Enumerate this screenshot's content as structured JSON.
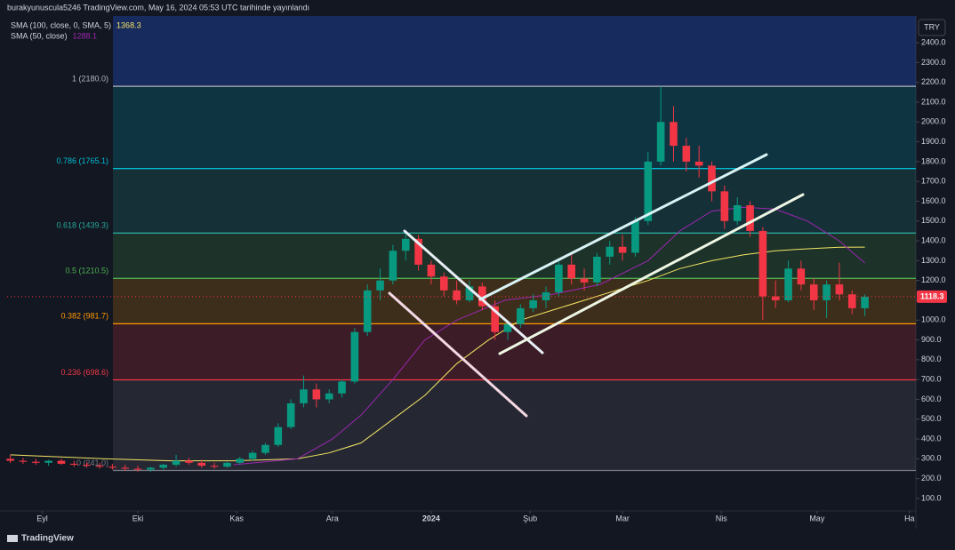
{
  "header": {
    "text": "burakyunuscula5246 TradingView.com, May 16, 2024 05:53 UTC tarihinde yayınlandı",
    "footer": "TradingView"
  },
  "chart_data": {
    "type": "candlestick",
    "currency": "TRY",
    "up_color": "#089981",
    "down_color": "#f23645",
    "xlim": [
      -11,
      274
    ],
    "ylim": [
      37,
      2535
    ],
    "xticks": [
      {
        "value": 0,
        "label": "Eyl"
      },
      {
        "value": 30,
        "label": "Eki"
      },
      {
        "value": 61,
        "label": "Kas"
      },
      {
        "value": 91,
        "label": "Ara"
      },
      {
        "value": 122,
        "label": "2024"
      },
      {
        "value": 153,
        "label": "Şub"
      },
      {
        "value": 182,
        "label": "Mar"
      },
      {
        "value": 213,
        "label": "Nis"
      },
      {
        "value": 243,
        "label": "May"
      },
      {
        "value": 272,
        "label": "Ha"
      }
    ],
    "yticks": [
      {
        "value": 100,
        "label": "100.0"
      },
      {
        "value": 200,
        "label": "200.0"
      },
      {
        "value": 300,
        "label": "300.0"
      },
      {
        "value": 400,
        "label": "400.0"
      },
      {
        "value": 500,
        "label": "500.0"
      },
      {
        "value": 600,
        "label": "600.0"
      },
      {
        "value": 700,
        "label": "700.0"
      },
      {
        "value": 800,
        "label": "800.0"
      },
      {
        "value": 900,
        "label": "900.0"
      },
      {
        "value": 1000,
        "label": "1000.0"
      },
      {
        "value": 1100,
        "label": "1100.0"
      },
      {
        "value": 1200,
        "label": "1200.0"
      },
      {
        "value": 1300,
        "label": "1300.0"
      },
      {
        "value": 1400,
        "label": "1400.0"
      },
      {
        "value": 1500,
        "label": "1500.0"
      },
      {
        "value": 1600,
        "label": "1600.0"
      },
      {
        "value": 1700,
        "label": "1700.0"
      },
      {
        "value": 1800,
        "label": "1800.0"
      },
      {
        "value": 1900,
        "label": "1900.0"
      },
      {
        "value": 2000,
        "label": "2000.0"
      },
      {
        "value": 2100,
        "label": "2100.0"
      },
      {
        "value": 2200,
        "label": "2200.0"
      },
      {
        "value": 2300,
        "label": "2300.0"
      },
      {
        "value": 2400,
        "label": "2400.0"
      }
    ],
    "x": [
      -10,
      -6,
      -2,
      2,
      6,
      10,
      14,
      18,
      22,
      26,
      30,
      34,
      38,
      42,
      46,
      50,
      54,
      58,
      62,
      66,
      70,
      74,
      78,
      82,
      86,
      90,
      94,
      98,
      102,
      106,
      110,
      114,
      118,
      122,
      126,
      130,
      134,
      138,
      142,
      146,
      150,
      154,
      158,
      162,
      166,
      170,
      174,
      178,
      182,
      186,
      190,
      194,
      198,
      202,
      206,
      210,
      214,
      218,
      222,
      226,
      230,
      234,
      238,
      242,
      246,
      250,
      254,
      258
    ],
    "open": [
      300,
      290,
      285,
      280,
      290,
      275,
      270,
      265,
      260,
      255,
      250,
      245,
      255,
      270,
      290,
      280,
      265,
      260,
      280,
      300,
      330,
      370,
      460,
      580,
      650,
      600,
      630,
      690,
      940,
      1150,
      1200,
      1350,
      1410,
      1280,
      1220,
      1150,
      1100,
      1170,
      1070,
      940,
      980,
      1060,
      1100,
      1140,
      1280,
      1210,
      1190,
      1320,
      1370,
      1340,
      1500,
      1800,
      2000,
      1880,
      1800,
      1780,
      1650,
      1500,
      1580,
      1450,
      1120,
      1100,
      1260,
      1180,
      1100,
      1180,
      1130,
      1060
    ],
    "high": [
      320,
      305,
      300,
      295,
      300,
      290,
      285,
      280,
      275,
      270,
      265,
      260,
      275,
      320,
      305,
      295,
      280,
      285,
      310,
      340,
      380,
      480,
      600,
      720,
      680,
      650,
      700,
      960,
      1180,
      1260,
      1380,
      1440,
      1430,
      1300,
      1240,
      1200,
      1200,
      1190,
      1100,
      1000,
      1080,
      1130,
      1170,
      1300,
      1340,
      1260,
      1340,
      1400,
      1430,
      1520,
      1850,
      2180,
      2080,
      1920,
      1880,
      1800,
      1680,
      1620,
      1600,
      1470,
      1200,
      1300,
      1300,
      1210,
      1200,
      1290,
      1150,
      1130
    ],
    "low": [
      280,
      275,
      270,
      265,
      270,
      260,
      255,
      250,
      245,
      240,
      235,
      235,
      245,
      260,
      270,
      255,
      250,
      255,
      270,
      290,
      320,
      360,
      450,
      560,
      560,
      580,
      610,
      680,
      920,
      1100,
      1180,
      1300,
      1250,
      1180,
      1120,
      1080,
      1090,
      1050,
      900,
      900,
      960,
      1040,
      1060,
      1120,
      1180,
      1150,
      1170,
      1280,
      1300,
      1320,
      1480,
      1780,
      1800,
      1750,
      1720,
      1600,
      1460,
      1480,
      1420,
      1000,
      1060,
      1090,
      1150,
      1050,
      1010,
      1100,
      1030,
      1020
    ],
    "close": [
      290,
      285,
      280,
      290,
      275,
      270,
      265,
      260,
      255,
      250,
      245,
      255,
      270,
      290,
      280,
      265,
      260,
      280,
      300,
      330,
      370,
      460,
      580,
      650,
      600,
      630,
      690,
      940,
      1150,
      1200,
      1350,
      1410,
      1280,
      1220,
      1150,
      1100,
      1170,
      1070,
      940,
      980,
      1060,
      1100,
      1140,
      1280,
      1210,
      1190,
      1320,
      1370,
      1340,
      1500,
      1800,
      2000,
      1880,
      1800,
      1780,
      1650,
      1500,
      1580,
      1450,
      1120,
      1100,
      1260,
      1180,
      1100,
      1180,
      1130,
      1060,
      1118.3
    ],
    "series": [
      {
        "name": "SMA (100, close, 0, SMA, 5)",
        "color": "#f5e663",
        "x": [
          -10,
          20,
          40,
          60,
          80,
          90,
          100,
          110,
          120,
          130,
          140,
          150,
          160,
          170,
          180,
          190,
          200,
          210,
          220,
          230,
          240,
          250,
          258
        ],
        "values": [
          320,
          300,
          290,
          290,
          300,
          330,
          380,
          500,
          620,
          780,
          900,
          1000,
          1050,
          1100,
          1150,
          1200,
          1260,
          1300,
          1330,
          1350,
          1360,
          1368,
          1368.3
        ]
      },
      {
        "name": "SMA (50, close)",
        "color": "#9c27b0",
        "x": [
          60,
          80,
          91,
          100,
          110,
          120,
          130,
          145,
          160,
          175,
          190,
          200,
          210,
          220,
          230,
          240,
          250,
          258
        ],
        "values": [
          270,
          300,
          400,
          520,
          700,
          900,
          1000,
          1100,
          1130,
          1180,
          1300,
          1450,
          1550,
          1570,
          1560,
          1500,
          1400,
          1288.1
        ]
      }
    ],
    "fib_levels": [
      {
        "label": "1 (2180.0)",
        "value": 2180,
        "color": "#b2b5be"
      },
      {
        "label": "0.786 (1765.1)",
        "value": 1765.1,
        "color": "#00bcd4"
      },
      {
        "label": "0.618 (1439.3)",
        "value": 1439.3,
        "color": "#26a69a"
      },
      {
        "label": "0.5 (1210.5)",
        "value": 1210.5,
        "color": "#4caf50"
      },
      {
        "label": "0.382 (981.7)",
        "value": 981.7,
        "color": "#ff9800"
      },
      {
        "label": "0.236 (698.6)",
        "value": 698.6,
        "color": "#f23645"
      },
      {
        "label": "0 (241.0)",
        "value": 241,
        "color": "#787b86"
      }
    ]
  }
}
